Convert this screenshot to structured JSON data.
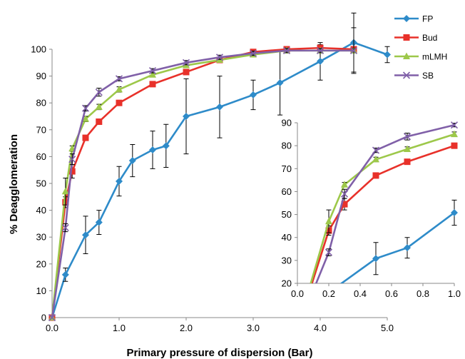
{
  "chart_data": [
    {
      "type": "line",
      "xlabel": "Primary pressure of dispersion (Bar)",
      "ylabel": "% Deagglomeration",
      "xlim": [
        0,
        5
      ],
      "ylim": [
        0,
        100
      ],
      "xticks": [
        "0.0",
        "1.0",
        "2.0",
        "3.0",
        "4.0",
        "5.0"
      ],
      "yticks": [
        "0",
        "10",
        "20",
        "30",
        "40",
        "50",
        "60",
        "70",
        "80",
        "90",
        "100"
      ],
      "grid": false,
      "legend": "top-right",
      "series": [
        {
          "name": "FP",
          "color": "#2E8BC9",
          "marker": "diamond",
          "x": [
            0,
            0.2,
            0.5,
            0.7,
            1.0,
            1.2,
            1.5,
            1.7,
            2.0,
            2.5,
            3.0,
            3.4,
            4.0,
            4.5,
            5.0
          ],
          "y": [
            0,
            16,
            30.8,
            35.5,
            50.8,
            58.5,
            62.5,
            64,
            75,
            78.5,
            83,
            87.5,
            95.5,
            102.5,
            98
          ],
          "err": [
            0,
            2.5,
            7,
            4.5,
            5.5,
            6,
            7,
            8,
            14,
            11.5,
            5.5,
            12,
            7,
            11,
            3
          ]
        },
        {
          "name": "Bud",
          "color": "#E8312A",
          "marker": "square",
          "x": [
            0,
            0.2,
            0.3,
            0.5,
            0.7,
            1.0,
            1.5,
            2.0,
            2.5,
            3.0,
            3.5,
            4.0,
            4.5
          ],
          "y": [
            0,
            43,
            54.5,
            67,
            73,
            80,
            87,
            91.5,
            96,
            99,
            100,
            100.5,
            100
          ],
          "err": [
            0,
            2,
            2.5,
            0.8,
            0.8,
            0.8,
            0.8,
            0.8,
            0.8,
            0.8,
            0.8,
            1.2,
            0.8
          ]
        },
        {
          "name": "mLMH",
          "color": "#9DC84A",
          "marker": "triangle",
          "x": [
            0,
            0.2,
            0.3,
            0.5,
            0.7,
            1.0,
            1.5,
            2.0,
            2.5,
            3.0,
            3.5,
            4.0,
            4.5
          ],
          "y": [
            0,
            47,
            63,
            74,
            78.5,
            85,
            90.5,
            94,
            96,
            98,
            99.5,
            99.5,
            99.5
          ],
          "err": [
            0,
            5,
            1,
            1,
            1,
            1,
            0.8,
            0.8,
            0.8,
            0.8,
            0.8,
            0.8,
            0.8
          ]
        },
        {
          "name": "SB",
          "color": "#8060A8",
          "marker": "x",
          "x": [
            0,
            0.2,
            0.3,
            0.5,
            0.7,
            1.0,
            1.5,
            2.0,
            2.5,
            3.0,
            3.5,
            4.0,
            4.5
          ],
          "y": [
            0,
            33.5,
            59,
            78,
            84,
            89,
            92,
            95,
            97,
            98.5,
            99.5,
            99.5,
            99.5
          ],
          "err": [
            0,
            1.5,
            2,
            1,
            1.5,
            0.8,
            0.8,
            0.8,
            0.8,
            0.8,
            0.8,
            0.8,
            8.5
          ]
        }
      ]
    },
    {
      "type": "line",
      "xlim": [
        0,
        1
      ],
      "ylim": [
        20,
        90
      ],
      "xticks": [
        "0.0",
        "0.2",
        "0.4",
        "0.6",
        "0.8",
        "1.0"
      ],
      "yticks": [
        "20",
        "30",
        "40",
        "50",
        "60",
        "70",
        "80",
        "90"
      ],
      "grid": false,
      "series": [
        {
          "name": "FP",
          "color": "#2E8BC9",
          "marker": "diamond",
          "x": [
            0,
            0.2,
            0.5,
            0.7,
            1.0
          ],
          "y": [
            0,
            16,
            30.8,
            35.5,
            50.8
          ],
          "err": [
            0,
            2.5,
            7,
            4.5,
            5.5
          ]
        },
        {
          "name": "Bud",
          "color": "#E8312A",
          "marker": "square",
          "x": [
            0,
            0.2,
            0.3,
            0.5,
            0.7,
            1.0
          ],
          "y": [
            0,
            43,
            54.5,
            67,
            73,
            80
          ],
          "err": [
            0,
            2,
            2.5,
            0.8,
            0.8,
            0.8
          ]
        },
        {
          "name": "mLMH",
          "color": "#9DC84A",
          "marker": "triangle",
          "x": [
            0,
            0.2,
            0.3,
            0.5,
            0.7,
            1.0
          ],
          "y": [
            0,
            47,
            63,
            74,
            78.5,
            85
          ],
          "err": [
            0,
            5,
            1,
            1,
            1,
            1
          ]
        },
        {
          "name": "SB",
          "color": "#8060A8",
          "marker": "x",
          "x": [
            0,
            0.2,
            0.3,
            0.5,
            0.7,
            1.0
          ],
          "y": [
            0,
            33.5,
            59,
            78,
            84,
            89
          ],
          "err": [
            0,
            1.5,
            2,
            1,
            1.5,
            0.8
          ]
        }
      ]
    }
  ]
}
